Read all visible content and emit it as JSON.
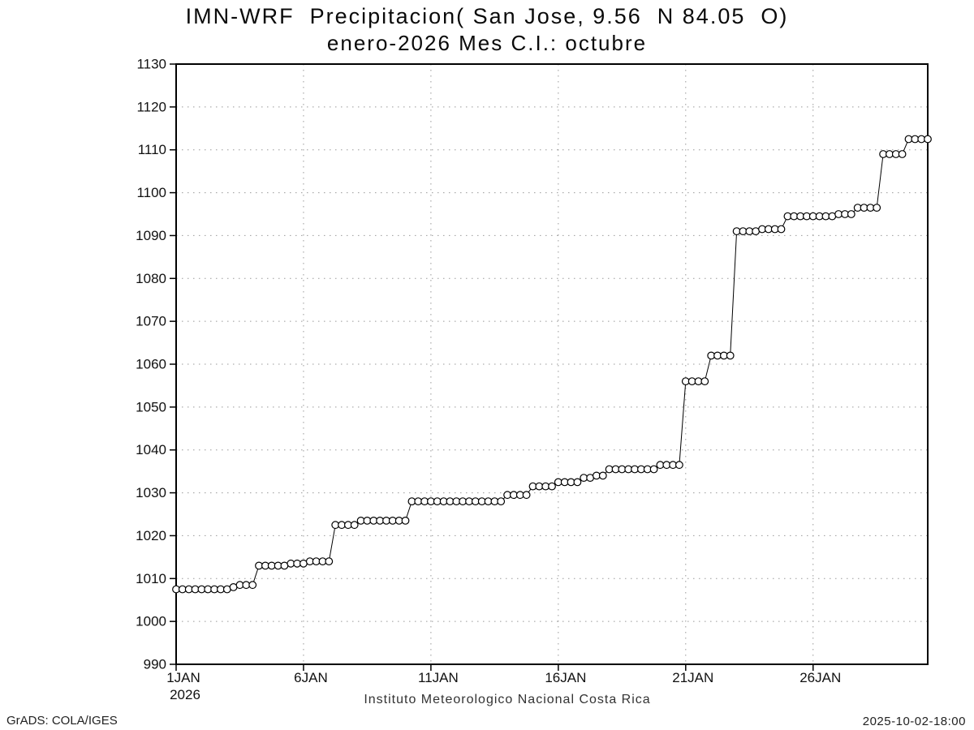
{
  "header": {
    "title_line1": "IMN-WRF  Precipitacion( San Jose, 9.56  N 84.05  O)",
    "title_line2": "enero-2026 Mes C.I.: octubre"
  },
  "footer": {
    "caption": "Instituto Meteorologico Nacional Costa Rica",
    "brand": "GrADS: COLA/IGES",
    "timestamp": "2025-10-02-18:00"
  },
  "chart_data": {
    "type": "line",
    "marker": "open-circle",
    "title": "IMN-WRF  Precipitacion( San Jose, 9.56  N 84.05  O)",
    "subtitle": "enero-2026 Mes C.I.: octubre",
    "xlabel": "Instituto Meteorologico Nacional Costa Rica",
    "ylabel": "",
    "x_unit": "day of January 2026, 6-hourly steps",
    "x_start": 1,
    "x_step": 0.25,
    "xlim": [
      1,
      30.5
    ],
    "ylim": [
      990,
      1130
    ],
    "ytick_step": 10,
    "grid": "dotted",
    "legend": "none",
    "xticks": [
      {
        "pos": 1,
        "label": "1JAN",
        "sublabel": "2026"
      },
      {
        "pos": 6,
        "label": "6JAN"
      },
      {
        "pos": 11,
        "label": "11JAN"
      },
      {
        "pos": 16,
        "label": "16JAN"
      },
      {
        "pos": 21,
        "label": "21JAN"
      },
      {
        "pos": 26,
        "label": "26JAN"
      }
    ],
    "values": [
      1007.5,
      1007.5,
      1007.5,
      1007.5,
      1007.5,
      1007.5,
      1007.5,
      1007.5,
      1007.5,
      1008,
      1008.5,
      1008.5,
      1008.5,
      1013,
      1013,
      1013,
      1013,
      1013,
      1013.5,
      1013.5,
      1013.5,
      1014,
      1014,
      1014,
      1014,
      1022.5,
      1022.5,
      1022.5,
      1022.5,
      1023.5,
      1023.5,
      1023.5,
      1023.5,
      1023.5,
      1023.5,
      1023.5,
      1023.5,
      1028,
      1028,
      1028,
      1028,
      1028,
      1028,
      1028,
      1028,
      1028,
      1028,
      1028,
      1028,
      1028,
      1028,
      1028,
      1029.5,
      1029.5,
      1029.5,
      1029.5,
      1031.5,
      1031.5,
      1031.5,
      1031.5,
      1032.5,
      1032.5,
      1032.5,
      1032.5,
      1033.5,
      1033.5,
      1034,
      1034,
      1035.5,
      1035.5,
      1035.5,
      1035.5,
      1035.5,
      1035.5,
      1035.5,
      1035.5,
      1036.5,
      1036.5,
      1036.5,
      1036.5,
      1056,
      1056,
      1056,
      1056,
      1062,
      1062,
      1062,
      1062,
      1091,
      1091,
      1091,
      1091,
      1091.5,
      1091.5,
      1091.5,
      1091.5,
      1094.5,
      1094.5,
      1094.5,
      1094.5,
      1094.5,
      1094.5,
      1094.5,
      1094.5,
      1095,
      1095,
      1095,
      1096.5,
      1096.5,
      1096.5,
      1096.5,
      1109,
      1109,
      1109,
      1109,
      1112.5,
      1112.5,
      1112.5,
      1112.5
    ],
    "colors": {
      "line": "#000000",
      "marker_fill": "#ffffff",
      "marker_stroke": "#000000",
      "grid": "#999999",
      "frame": "#000000",
      "background": "#ffffff",
      "tick_label": "#111111"
    }
  }
}
